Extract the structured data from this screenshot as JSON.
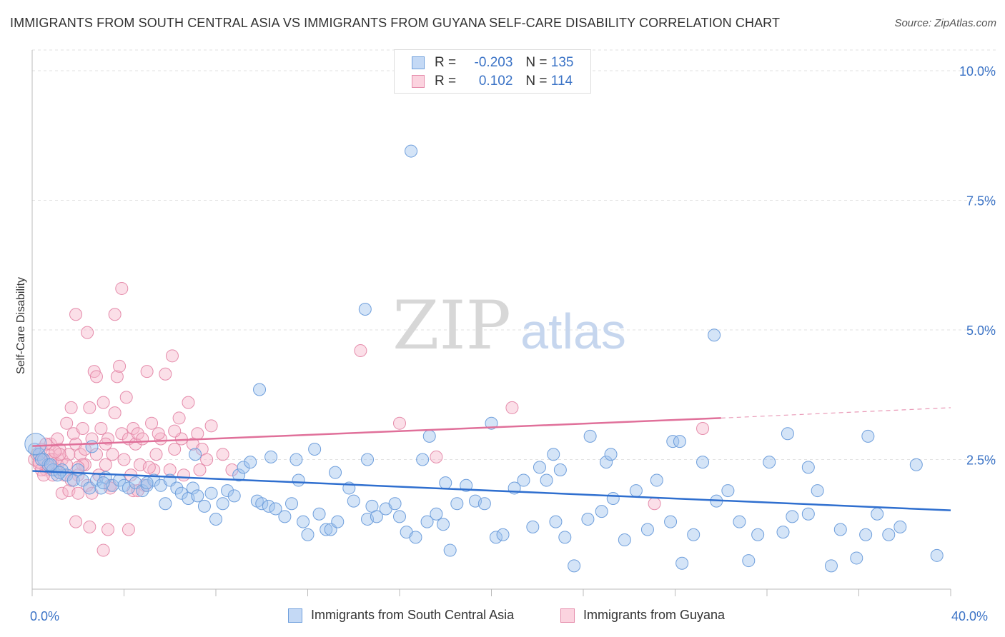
{
  "title": "IMMIGRANTS FROM SOUTH CENTRAL ASIA VS IMMIGRANTS FROM GUYANA SELF-CARE DISABILITY CORRELATION CHART",
  "source": "Source: ZipAtlas.com",
  "watermark": {
    "zip": "ZIP",
    "atlas": "atlas"
  },
  "legend_top": [
    {
      "r_label": "R =",
      "r_value": "-0.203",
      "n_label": "N =",
      "n_value": "135",
      "color": "#a9c8f0",
      "border": "#6f9fdc"
    },
    {
      "r_label": "R =",
      "r_value": "0.102",
      "n_label": "N =",
      "n_value": "114",
      "color": "#f7bfd1",
      "border": "#e58cab"
    }
  ],
  "legend_bottom": [
    {
      "label": "Immigrants from South Central Asia",
      "color": "#c4d9f5",
      "border": "#6f9fdc"
    },
    {
      "label": "Immigrants from Guyana",
      "color": "#fbd3df",
      "border": "#e58cab"
    }
  ],
  "x_axis": {
    "min_label": "0.0%",
    "max_label": "40.0%"
  },
  "chart_data": {
    "type": "scatter",
    "title": "IMMIGRANTS FROM SOUTH CENTRAL ASIA VS IMMIGRANTS FROM GUYANA SELF-CARE DISABILITY CORRELATION CHART",
    "xlabel": "",
    "ylabel": "Self-Care Disability",
    "xlim": [
      0,
      40
    ],
    "ylim": [
      0,
      10.4
    ],
    "y_ticks": [
      2.5,
      5.0,
      7.5,
      10.0
    ],
    "y_tick_labels": [
      "2.5%",
      "5.0%",
      "7.5%",
      "10.0%"
    ],
    "grid": "horizontal dashed",
    "legend_position": "top-center",
    "colors": {
      "blue": "#6f9fdc",
      "blue_fill": "rgba(160,195,238,0.45)",
      "pink": "#e58cab",
      "pink_fill": "rgba(247,184,205,0.45)",
      "blue_line": "#2f6fcf",
      "pink_line": "#e0709a"
    },
    "series": [
      {
        "name": "Immigrants from South Central Asia",
        "color": "blue",
        "points": [
          [
            0.1,
            2.7
          ],
          [
            0.3,
            2.6
          ],
          [
            0.5,
            2.5
          ],
          [
            0.7,
            2.4
          ],
          [
            0.9,
            2.3
          ],
          [
            1.1,
            2.2
          ],
          [
            1.3,
            2.3
          ],
          [
            1.5,
            2.2
          ],
          [
            1.8,
            2.1
          ],
          [
            0.4,
            2.5
          ],
          [
            0.8,
            2.4
          ],
          [
            1.2,
            2.25
          ],
          [
            2.0,
            2.3
          ],
          [
            2.2,
            2.1
          ],
          [
            2.5,
            1.95
          ],
          [
            2.8,
            2.1
          ],
          [
            3.0,
            1.95
          ],
          [
            3.2,
            2.15
          ],
          [
            3.5,
            2.0
          ],
          [
            3.8,
            2.1
          ],
          [
            4.0,
            2.0
          ],
          [
            4.2,
            1.95
          ],
          [
            4.5,
            2.05
          ],
          [
            4.8,
            1.9
          ],
          [
            5.0,
            2.0
          ],
          [
            5.3,
            2.1
          ],
          [
            5.6,
            2.0
          ],
          [
            5.8,
            1.65
          ],
          [
            6.0,
            2.1
          ],
          [
            6.3,
            1.95
          ],
          [
            6.5,
            1.85
          ],
          [
            6.8,
            1.75
          ],
          [
            7.0,
            1.95
          ],
          [
            7.2,
            1.8
          ],
          [
            7.5,
            1.6
          ],
          [
            7.8,
            1.85
          ],
          [
            8.0,
            1.35
          ],
          [
            8.3,
            1.65
          ],
          [
            8.5,
            1.9
          ],
          [
            8.8,
            1.8
          ],
          [
            9.0,
            2.2
          ],
          [
            9.2,
            2.35
          ],
          [
            9.5,
            2.45
          ],
          [
            9.8,
            1.7
          ],
          [
            10.0,
            1.65
          ],
          [
            10.3,
            1.6
          ],
          [
            10.6,
            1.55
          ],
          [
            11.0,
            1.4
          ],
          [
            11.3,
            1.65
          ],
          [
            11.6,
            2.1
          ],
          [
            11.8,
            1.3
          ],
          [
            12.0,
            1.05
          ],
          [
            12.5,
            1.45
          ],
          [
            12.8,
            1.15
          ],
          [
            13.0,
            1.15
          ],
          [
            13.3,
            1.3
          ],
          [
            13.8,
            1.95
          ],
          [
            14.0,
            1.7
          ],
          [
            14.6,
            1.35
          ],
          [
            14.8,
            1.6
          ],
          [
            15.0,
            1.4
          ],
          [
            15.4,
            1.55
          ],
          [
            15.8,
            1.65
          ],
          [
            16.0,
            1.4
          ],
          [
            16.3,
            1.1
          ],
          [
            16.7,
            1.0
          ],
          [
            17.2,
            1.3
          ],
          [
            17.6,
            1.45
          ],
          [
            17.9,
            1.25
          ],
          [
            18.2,
            0.75
          ],
          [
            18.5,
            1.65
          ],
          [
            18.9,
            2.0
          ],
          [
            19.3,
            1.7
          ],
          [
            19.7,
            1.65
          ],
          [
            20.2,
            1.0
          ],
          [
            20.5,
            1.05
          ],
          [
            21.0,
            1.95
          ],
          [
            21.4,
            2.1
          ],
          [
            21.8,
            1.2
          ],
          [
            22.1,
            2.35
          ],
          [
            22.4,
            2.1
          ],
          [
            22.8,
            1.3
          ],
          [
            23.2,
            1.0
          ],
          [
            23.6,
            0.45
          ],
          [
            24.2,
            1.35
          ],
          [
            24.8,
            1.5
          ],
          [
            25.3,
            1.75
          ],
          [
            25.8,
            0.95
          ],
          [
            26.3,
            1.9
          ],
          [
            26.8,
            1.15
          ],
          [
            27.2,
            2.1
          ],
          [
            27.8,
            1.3
          ],
          [
            28.3,
            0.5
          ],
          [
            28.8,
            1.05
          ],
          [
            29.2,
            2.45
          ],
          [
            29.8,
            1.7
          ],
          [
            30.3,
            1.9
          ],
          [
            30.8,
            1.3
          ],
          [
            31.2,
            0.55
          ],
          [
            31.6,
            1.05
          ],
          [
            32.1,
            2.45
          ],
          [
            32.7,
            1.1
          ],
          [
            33.1,
            1.4
          ],
          [
            33.8,
            1.45
          ],
          [
            34.2,
            1.9
          ],
          [
            34.8,
            0.45
          ],
          [
            35.2,
            1.15
          ],
          [
            35.9,
            0.6
          ],
          [
            36.3,
            1.05
          ],
          [
            36.8,
            1.45
          ],
          [
            37.3,
            1.05
          ],
          [
            37.8,
            1.2
          ],
          [
            38.5,
            2.4
          ],
          [
            39.4,
            0.65
          ],
          [
            16.5,
            8.45
          ],
          [
            14.5,
            5.4
          ],
          [
            29.7,
            4.9
          ],
          [
            9.9,
            3.85
          ],
          [
            17.3,
            2.95
          ],
          [
            20.0,
            3.2
          ],
          [
            22.7,
            2.6
          ],
          [
            24.3,
            2.95
          ],
          [
            25.0,
            2.45
          ],
          [
            25.2,
            2.6
          ],
          [
            27.9,
            2.85
          ],
          [
            32.9,
            3.0
          ],
          [
            36.4,
            2.95
          ],
          [
            12.3,
            2.7
          ],
          [
            11.5,
            2.5
          ],
          [
            13.2,
            2.25
          ],
          [
            14.6,
            2.5
          ],
          [
            18.0,
            2.05
          ],
          [
            17.0,
            2.5
          ],
          [
            23.0,
            2.3
          ],
          [
            28.2,
            2.85
          ],
          [
            33.8,
            2.35
          ],
          [
            2.6,
            2.75
          ],
          [
            3.1,
            2.05
          ],
          [
            5.0,
            2.05
          ],
          [
            7.1,
            2.6
          ],
          [
            10.4,
            2.55
          ]
        ]
      },
      {
        "name": "Immigrants from Guyana",
        "color": "pink",
        "points": [
          [
            0.1,
            2.5
          ],
          [
            0.2,
            2.6
          ],
          [
            0.3,
            2.4
          ],
          [
            0.4,
            2.7
          ],
          [
            0.5,
            2.5
          ],
          [
            0.6,
            2.3
          ],
          [
            0.7,
            2.6
          ],
          [
            0.8,
            2.8
          ],
          [
            0.9,
            2.5
          ],
          [
            1.0,
            2.3
          ],
          [
            1.1,
            2.9
          ],
          [
            1.2,
            2.7
          ],
          [
            1.3,
            2.5
          ],
          [
            1.4,
            2.2
          ],
          [
            1.5,
            3.2
          ],
          [
            1.6,
            2.6
          ],
          [
            1.7,
            3.5
          ],
          [
            1.8,
            3.0
          ],
          [
            1.9,
            2.8
          ],
          [
            2.0,
            2.2
          ],
          [
            2.1,
            2.6
          ],
          [
            2.2,
            3.1
          ],
          [
            2.3,
            2.4
          ],
          [
            2.4,
            2.0
          ],
          [
            2.5,
            3.5
          ],
          [
            2.6,
            2.9
          ],
          [
            2.7,
            4.2
          ],
          [
            2.8,
            4.1
          ],
          [
            2.9,
            2.2
          ],
          [
            3.0,
            3.1
          ],
          [
            3.1,
            3.6
          ],
          [
            3.2,
            2.4
          ],
          [
            3.3,
            2.9
          ],
          [
            3.4,
            2.0
          ],
          [
            3.5,
            2.6
          ],
          [
            3.6,
            3.4
          ],
          [
            3.7,
            4.1
          ],
          [
            3.8,
            4.3
          ],
          [
            3.9,
            3.0
          ],
          [
            4.0,
            2.5
          ],
          [
            4.1,
            3.7
          ],
          [
            4.2,
            2.9
          ],
          [
            4.3,
            2.2
          ],
          [
            4.4,
            3.1
          ],
          [
            4.5,
            2.8
          ],
          [
            4.6,
            3.0
          ],
          [
            4.7,
            2.4
          ],
          [
            4.8,
            2.9
          ],
          [
            4.9,
            2.0
          ],
          [
            5.0,
            4.2
          ],
          [
            5.2,
            3.2
          ],
          [
            5.4,
            2.6
          ],
          [
            5.6,
            2.9
          ],
          [
            5.8,
            4.15
          ],
          [
            6.0,
            2.3
          ],
          [
            6.2,
            2.7
          ],
          [
            6.4,
            3.3
          ],
          [
            6.6,
            2.2
          ],
          [
            6.8,
            3.6
          ],
          [
            7.0,
            2.8
          ],
          [
            7.2,
            3.0
          ],
          [
            7.4,
            2.7
          ],
          [
            7.6,
            2.5
          ],
          [
            1.9,
            5.3
          ],
          [
            2.4,
            4.95
          ],
          [
            3.6,
            5.3
          ],
          [
            3.9,
            5.8
          ],
          [
            6.1,
            4.5
          ],
          [
            14.3,
            4.6
          ],
          [
            20.9,
            3.5
          ],
          [
            16.0,
            3.2
          ],
          [
            17.6,
            2.55
          ],
          [
            27.1,
            1.65
          ],
          [
            29.2,
            3.1
          ],
          [
            1.9,
            1.3
          ],
          [
            2.5,
            1.2
          ],
          [
            3.3,
            1.15
          ],
          [
            4.2,
            1.15
          ],
          [
            3.1,
            0.75
          ],
          [
            1.3,
            1.85
          ],
          [
            1.6,
            1.9
          ],
          [
            2.0,
            1.85
          ],
          [
            2.6,
            1.85
          ],
          [
            3.4,
            1.95
          ],
          [
            4.4,
            1.9
          ],
          [
            0.4,
            2.3
          ],
          [
            0.6,
            2.8
          ],
          [
            0.9,
            2.2
          ],
          [
            1.1,
            2.4
          ],
          [
            1.5,
            2.4
          ],
          [
            2.3,
            2.7
          ],
          [
            2.8,
            2.6
          ],
          [
            3.2,
            2.8
          ],
          [
            4.6,
            1.9
          ],
          [
            5.3,
            2.3
          ],
          [
            6.5,
            2.9
          ],
          [
            7.3,
            2.3
          ],
          [
            8.3,
            2.6
          ],
          [
            8.7,
            2.3
          ],
          [
            0.2,
            2.6
          ],
          [
            0.5,
            2.2
          ],
          [
            0.8,
            2.5
          ],
          [
            1.2,
            2.6
          ],
          [
            1.7,
            2.1
          ],
          [
            2.2,
            2.4
          ],
          [
            5.1,
            2.35
          ],
          [
            5.5,
            3.0
          ],
          [
            6.2,
            3.05
          ],
          [
            7.8,
            3.15
          ],
          [
            2.0,
            2.35
          ],
          [
            0.3,
            2.45
          ],
          [
            0.7,
            2.35
          ],
          [
            1.0,
            2.65
          ]
        ]
      }
    ],
    "trend_lines": [
      {
        "series": "Immigrants from South Central Asia",
        "x": [
          0,
          40
        ],
        "y": [
          2.28,
          1.52
        ]
      },
      {
        "series": "Immigrants from Guyana",
        "x": [
          0,
          30.0
        ],
        "y": [
          2.76,
          3.3
        ],
        "dashed_extension_to": [
          40,
          3.5
        ]
      }
    ]
  }
}
